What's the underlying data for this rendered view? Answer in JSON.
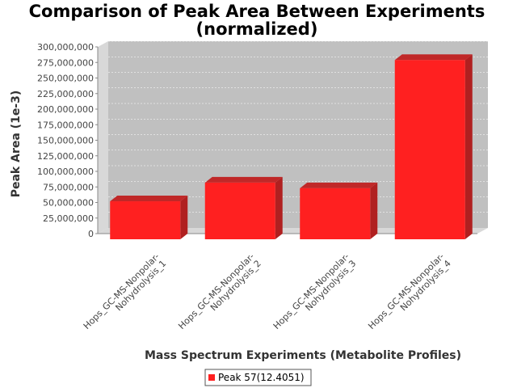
{
  "chart_data": {
    "type": "bar",
    "title_lines": [
      "Comparison of Peak Area Between Experiments",
      "(normalized)"
    ],
    "xlabel": "Mass Spectrum Experiments (Metabolite Profiles)",
    "ylabel": "Peak Area (1e-3)",
    "ylim": [
      0,
      300000000
    ],
    "yticks": [
      0,
      25000000,
      50000000,
      75000000,
      100000000,
      125000000,
      150000000,
      175000000,
      200000000,
      225000000,
      250000000,
      275000000,
      300000000
    ],
    "ytick_labels": [
      "0",
      "25,000,000",
      "50,000,000",
      "75,000,000",
      "100,000,000",
      "125,000,000",
      "150,000,000",
      "175,000,000",
      "200,000,000",
      "225,000,000",
      "250,000,000",
      "275,000,000",
      "300,000,000"
    ],
    "categories": [
      [
        "Hops_GC-MS-Nonpolar-",
        "Nohydrolysis_1"
      ],
      [
        "Hops_GC-MS-Nonpolar-",
        "Nohydrolysis_2"
      ],
      [
        "Hops_GC-MS-Nonpolar-",
        "Nohydrolysis_3"
      ],
      [
        "Hops_GC-MS-Nonpolar-",
        "Nohydrolysis_4"
      ]
    ],
    "series": [
      {
        "name": "Peak 57(12.4051)",
        "values": [
          61000000,
          91000000,
          82000000,
          288000000
        ]
      }
    ],
    "grid": true,
    "legend_position": "bottom",
    "colors": {
      "bar": "#ff2020",
      "bar_side": "#b02020",
      "bar_top": "#c02828",
      "plot_bg": "#c0c0c0",
      "plot_bg_side": "#d8d8d8"
    }
  }
}
